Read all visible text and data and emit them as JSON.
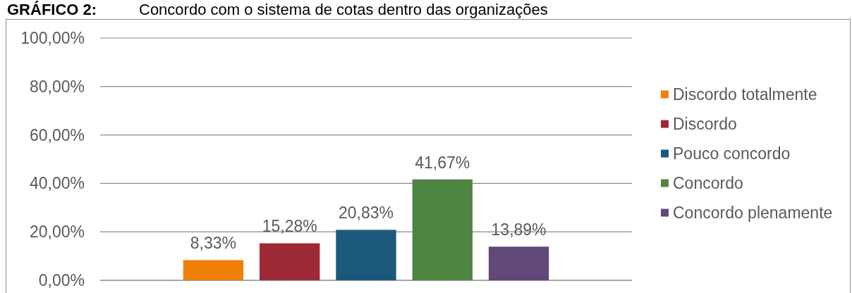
{
  "chart_data": {
    "type": "bar",
    "title": "GRÁFICO 2: Concordo com o sistema de cotas dentro das organizações",
    "categories": [
      null
    ],
    "series": [
      {
        "name": "Discordo totalmente",
        "color": "#f08009",
        "values": [
          8.33
        ],
        "value_labels": [
          "8,33%"
        ]
      },
      {
        "name": "Discordo",
        "color": "#9e2a37",
        "values": [
          15.28
        ],
        "value_labels": [
          "15,28%"
        ]
      },
      {
        "name": "Pouco concordo",
        "color": "#1c587c",
        "values": [
          20.83
        ],
        "value_labels": [
          "20,83%"
        ]
      },
      {
        "name": "Concordo",
        "color": "#4e8542",
        "values": [
          41.67
        ],
        "value_labels": [
          "41,67%"
        ]
      },
      {
        "name": "Concordo plenamente",
        "color": "#604878",
        "values": [
          13.89
        ],
        "value_labels": [
          "13,89%"
        ]
      }
    ],
    "ylim": [
      0,
      100
    ],
    "yticks": [
      {
        "value": 0,
        "label": "0,00%"
      },
      {
        "value": 20,
        "label": "20,00%"
      },
      {
        "value": 40,
        "label": "40,00%"
      },
      {
        "value": 60,
        "label": "60,00%"
      },
      {
        "value": 80,
        "label": "80,00%"
      },
      {
        "value": 100,
        "label": "100,00%"
      }
    ],
    "grid": "y",
    "legend": "right",
    "tick_labels": "y"
  }
}
